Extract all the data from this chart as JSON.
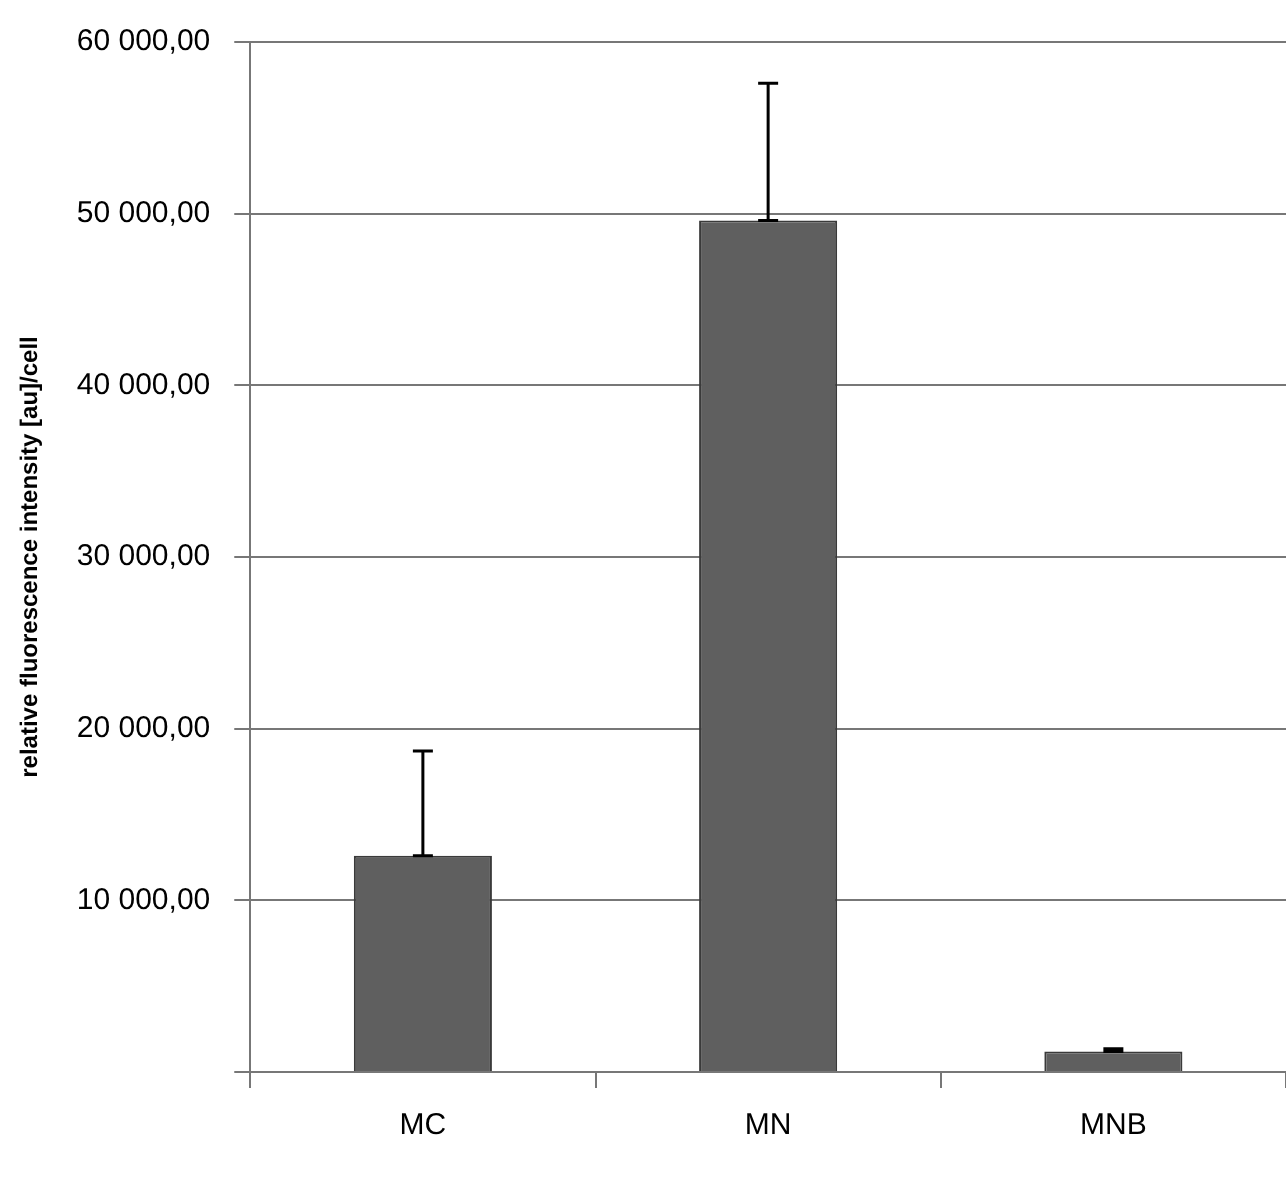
{
  "chart_data": {
    "type": "bar",
    "ylabel": "relative fluorescence intensity [au]/cell",
    "categories": [
      "MC",
      "MN",
      "MNB"
    ],
    "values": [
      12600,
      49600,
      1200
    ],
    "errors": [
      [
        12600,
        18700
      ],
      [
        49600,
        57600
      ],
      [
        1200,
        1350
      ]
    ],
    "color": "#5f5f5f",
    "ylim": [
      0,
      60000
    ],
    "yticks": [
      {
        "value": 0,
        "label": null
      },
      {
        "value": 10000,
        "label": "10 000,00"
      },
      {
        "value": 20000,
        "label": "20 000,00"
      },
      {
        "value": 30000,
        "label": "30 000,00"
      },
      {
        "value": 40000,
        "label": "40 000,00"
      },
      {
        "value": 50000,
        "label": "50 000,00"
      },
      {
        "value": 60000,
        "label": "60 000,00"
      }
    ],
    "grid": "y",
    "legend": false
  }
}
